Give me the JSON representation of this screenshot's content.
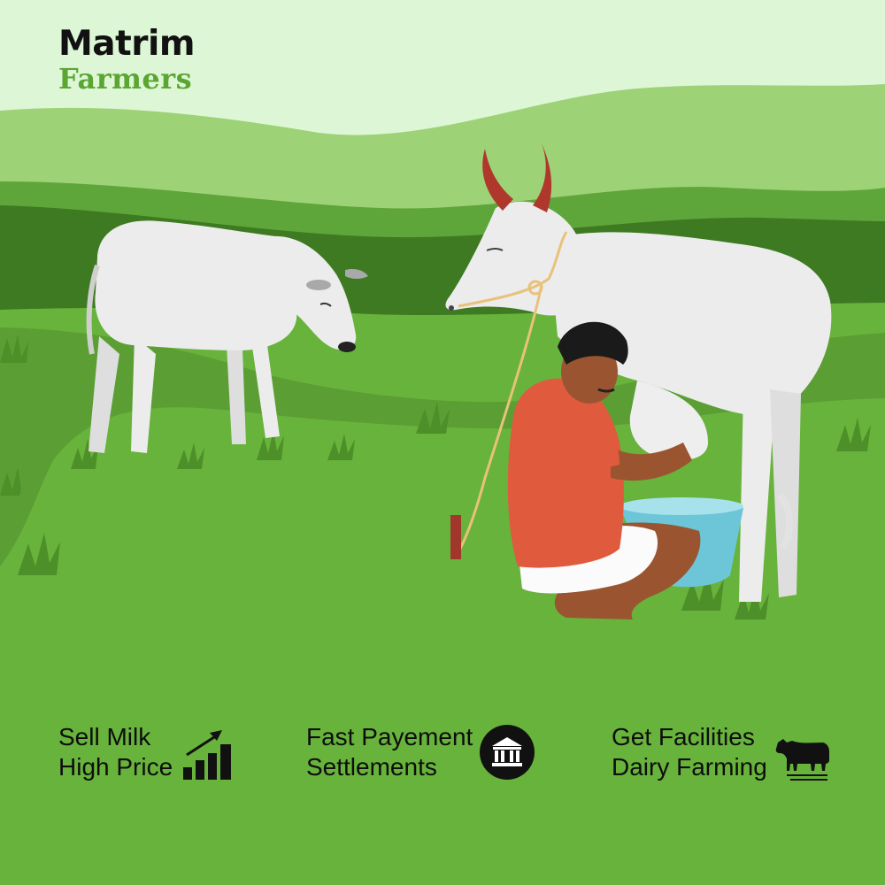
{
  "brand": {
    "line1": "Matrim",
    "line2": "Farmers",
    "accent_color": "#5ba532"
  },
  "colors": {
    "sky": "#ddf7d6",
    "hill_far": "#9ed277",
    "hill_mid": "#5fa63a",
    "hill_near": "#3d7a22",
    "meadow": "#68b33b",
    "cow": "#ececec",
    "horn": "#b0372c",
    "shirt": "#e05a3e",
    "skin": "#9a5530",
    "bucket": "#6cc6d8"
  },
  "features": [
    {
      "line1": "Sell Milk",
      "line2": "High Price",
      "icon": "bar-chart-growth-icon"
    },
    {
      "line1": "Fast Payement",
      "line2": "Settlements",
      "icon": "bank-building-icon"
    },
    {
      "line1": "Get Facilities",
      "line2": "Dairy Farming",
      "icon": "cow-icon"
    }
  ]
}
